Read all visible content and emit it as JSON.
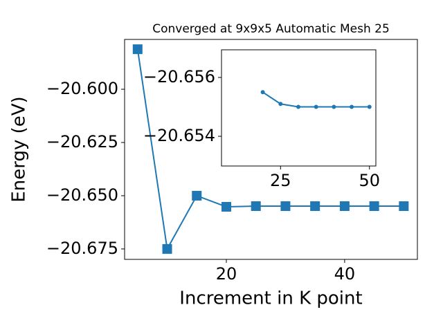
{
  "chart_data": [
    {
      "type": "line",
      "title": "Converged at 9x9x5 Automatic Mesh 25",
      "xlabel": "Increment in K point",
      "ylabel": "Energy (eV)",
      "x": [
        5,
        10,
        15,
        20,
        25,
        30,
        35,
        40,
        45,
        50
      ],
      "series": [
        {
          "color": "#1f77b4",
          "marker": "square",
          "values": [
            -20.5812,
            -20.675,
            -20.65,
            -20.6552,
            -20.6549,
            -20.6549,
            -20.6549,
            -20.6549,
            -20.6549,
            -20.6549
          ]
        }
      ],
      "xlim": [
        2.8,
        52.3
      ],
      "xticks": [
        20,
        40
      ],
      "ylim": [
        -20.6799,
        -20.5766
      ],
      "yticks": [
        {
          "value": -20.6,
          "label": "−20.600"
        },
        {
          "value": -20.625,
          "label": "−20.625"
        },
        {
          "value": -20.65,
          "label": "−20.650"
        },
        {
          "value": -20.675,
          "label": "−20.675"
        }
      ]
    },
    {
      "type": "line",
      "x": [
        20,
        25,
        30,
        35,
        40,
        45,
        50
      ],
      "series": [
        {
          "color": "#1f77b4",
          "marker": "circle",
          "values": [
            -20.6555,
            -20.6551,
            -20.655,
            -20.655,
            -20.655,
            -20.655,
            -20.655
          ]
        }
      ],
      "xlim": [
        8.4,
        51.8
      ],
      "xticks": [
        25,
        50
      ],
      "ylim": [
        -20.65694,
        -20.65299
      ],
      "yinvert": true,
      "yticks": [
        {
          "value": -20.656,
          "label": "−20.656"
        },
        {
          "value": -20.654,
          "label": "−20.654"
        }
      ]
    }
  ]
}
